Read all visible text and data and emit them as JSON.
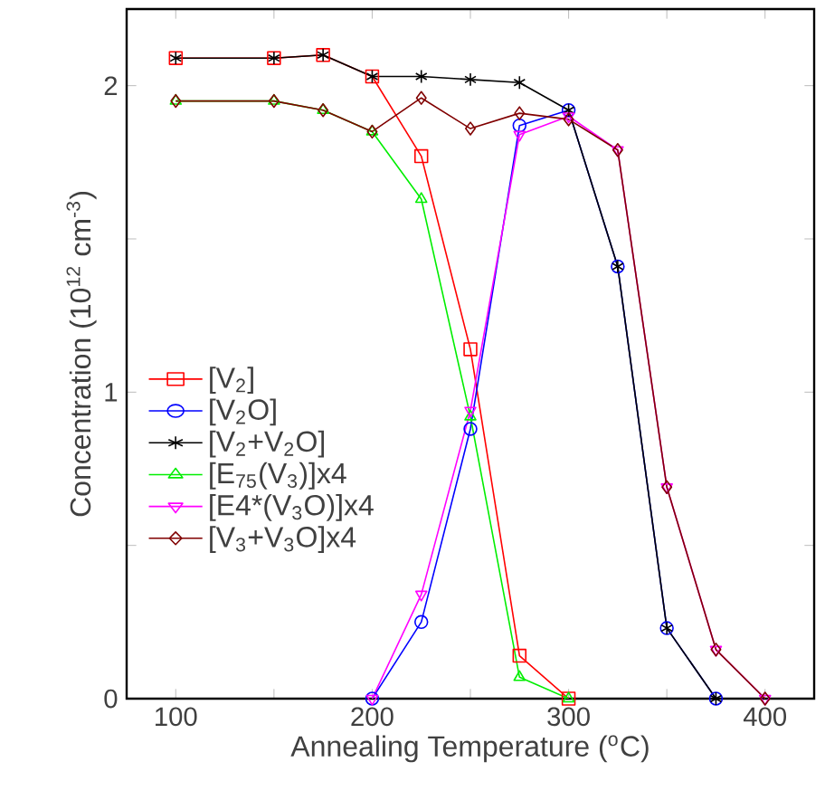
{
  "chart_data": {
    "type": "line",
    "xlabel": "Annealing Temperature ($^{o}$C)",
    "ylabel": "Concentration (10$^{12}$ cm$^{-3}$)",
    "xlim": [
      75,
      425
    ],
    "ylim": [
      0,
      2.25
    ],
    "xticks": [
      100,
      {
        "value": 150,
        "label": null
      },
      200,
      {
        "value": 250,
        "label": null
      },
      300,
      {
        "value": 350,
        "label": null
      },
      400
    ],
    "yticks": [
      0,
      {
        "value": 0.5,
        "label": null
      },
      1,
      {
        "value": 1.5,
        "label": null
      },
      2
    ],
    "legend": "left",
    "grid": false,
    "series": [
      {
        "name": "[V$_{2}$]",
        "color": "#ff0000",
        "marker": "square",
        "x": [
          100,
          150,
          175,
          200,
          225,
          250,
          275,
          300
        ],
        "values": [
          2.09,
          2.09,
          2.1,
          2.03,
          1.77,
          1.14,
          0.14,
          0
        ]
      },
      {
        "name": "[V$_{2}$O]",
        "color": "#0000ff",
        "marker": "circle",
        "x": [
          200,
          225,
          250,
          275,
          300,
          325,
          350,
          375
        ],
        "values": [
          0,
          0.25,
          0.88,
          1.87,
          1.92,
          1.41,
          0.23,
          0
        ]
      },
      {
        "name": "[V$_{2}$+V$_{2}$O]",
        "color": "#000000",
        "marker": "cross",
        "x": [
          100,
          150,
          175,
          200,
          225,
          250,
          275,
          300,
          325,
          350,
          375
        ],
        "values": [
          2.09,
          2.09,
          2.1,
          2.03,
          2.03,
          2.02,
          2.01,
          1.92,
          1.41,
          0.23,
          0
        ]
      },
      {
        "name": "[E$_{75}$(V$_{3}$)]x4",
        "color": "#00ee00",
        "marker": "triangle",
        "x": [
          100,
          150,
          175,
          200,
          225,
          250,
          275,
          300
        ],
        "values": [
          1.95,
          1.95,
          1.92,
          1.85,
          1.63,
          0.92,
          0.07,
          0
        ]
      },
      {
        "name": "[E4*(V$_{3}$O)]x4",
        "color": "#ff00ff",
        "marker": "triangle down",
        "x": [
          200,
          225,
          250,
          275,
          300,
          325,
          350,
          375,
          400
        ],
        "values": [
          0,
          0.34,
          0.94,
          1.84,
          1.9,
          1.79,
          0.69,
          0.16,
          0
        ]
      },
      {
        "name": "[V$_{3}$+V$_{3}$O]x4",
        "color": "#800000",
        "marker": "diamond",
        "x": [
          100,
          150,
          175,
          200,
          225,
          250,
          275,
          300,
          325,
          350,
          375,
          400
        ],
        "values": [
          1.95,
          1.95,
          1.92,
          1.85,
          1.96,
          1.86,
          1.91,
          1.89,
          1.79,
          0.69,
          0.16,
          0
        ]
      }
    ]
  }
}
